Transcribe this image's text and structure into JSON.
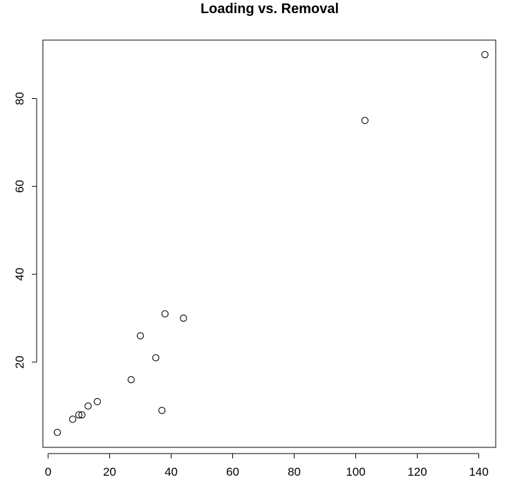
{
  "chart_data": {
    "type": "scatter",
    "title": "Loading vs. Removal",
    "xlabel": "",
    "ylabel": "",
    "xlim": [
      -1.7,
      145.5
    ],
    "ylim": [
      0.6,
      93.3
    ],
    "x_ticks": [
      0,
      20,
      40,
      60,
      80,
      100,
      120,
      140
    ],
    "y_ticks": [
      20,
      40,
      60,
      80
    ],
    "grid": false,
    "legend": "none",
    "marker": "open-circle",
    "colors": {
      "marker_stroke": "#000000",
      "axis": "#000000",
      "background": "#ffffff"
    },
    "points": [
      {
        "x": 3,
        "y": 4
      },
      {
        "x": 8,
        "y": 7
      },
      {
        "x": 10,
        "y": 8
      },
      {
        "x": 11,
        "y": 8
      },
      {
        "x": 13,
        "y": 10
      },
      {
        "x": 16,
        "y": 11
      },
      {
        "x": 27,
        "y": 16
      },
      {
        "x": 30,
        "y": 26
      },
      {
        "x": 35,
        "y": 21
      },
      {
        "x": 37,
        "y": 9
      },
      {
        "x": 38,
        "y": 31
      },
      {
        "x": 44,
        "y": 30
      },
      {
        "x": 103,
        "y": 75
      },
      {
        "x": 142,
        "y": 90
      }
    ]
  }
}
